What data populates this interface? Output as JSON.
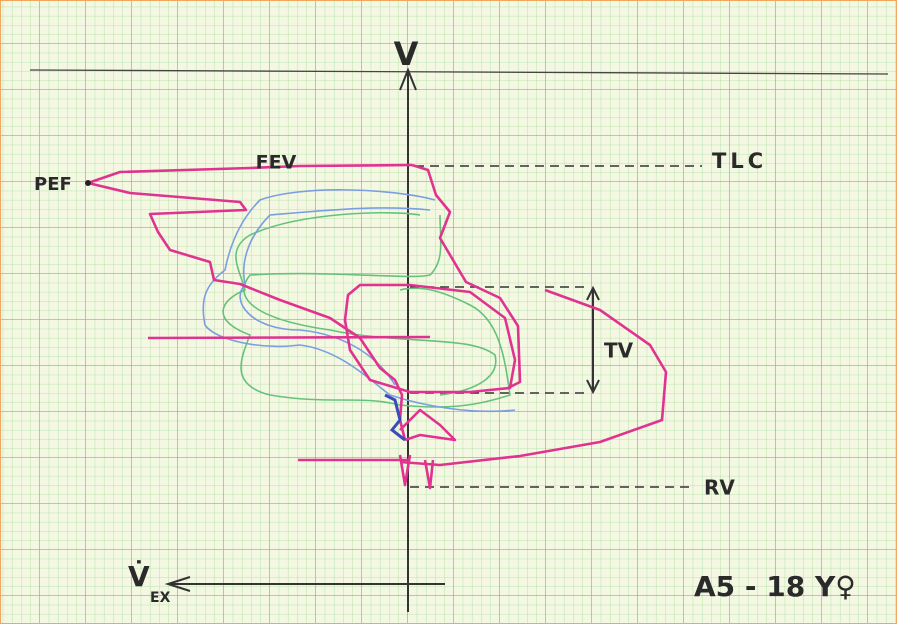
{
  "axis_label": "V",
  "labels": {
    "pef": "PEF",
    "fev": "FEV",
    "tlc": "TLC",
    "tv": "TV",
    "rv": "RV"
  },
  "flow_label": {
    "symbol": "V̇",
    "subscript": "EX"
  },
  "annotation": "A5 - 18 Y♀"
}
